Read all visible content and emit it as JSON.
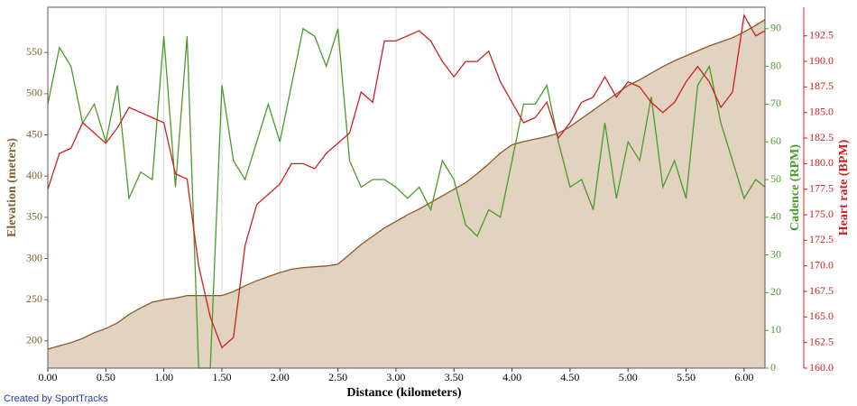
{
  "chart_data": {
    "type": "line",
    "x_label": "Distance (kilometers)",
    "y_label": "Elevation (meters)",
    "y2_label": "Cadence (RPM)",
    "y3_label": "Heart rate (BPM)",
    "credit": "Created by SportTracks",
    "grid": true,
    "xlim": [
      0,
      6.18
    ],
    "xticks": [
      {
        "value": 0,
        "label": "0.00"
      },
      {
        "value": 0.5,
        "label": "0.50"
      },
      {
        "value": 1,
        "label": "1.00"
      },
      {
        "value": 1.5,
        "label": "1.50"
      },
      {
        "value": 2,
        "label": "2.00"
      },
      {
        "value": 2.5,
        "label": "2.50"
      },
      {
        "value": 3,
        "label": "3.00"
      },
      {
        "value": 3.5,
        "label": "3.50"
      },
      {
        "value": 4,
        "label": "4.00"
      },
      {
        "value": 4.5,
        "label": "4.50"
      },
      {
        "value": 5,
        "label": "5.00"
      },
      {
        "value": 5.5,
        "label": "5.50"
      },
      {
        "value": 6,
        "label": "6.00"
      }
    ],
    "ylim": [
      167,
      605
    ],
    "yticks": [
      200,
      250,
      300,
      350,
      400,
      450,
      500,
      550
    ],
    "y2lim": [
      0,
      95.7
    ],
    "y2ticks": [
      0,
      10,
      20,
      30,
      40,
      50,
      60,
      70,
      80,
      90
    ],
    "y3lim": [
      160,
      195.3
    ],
    "y3ticks": [
      {
        "value": 160,
        "label": "160.0"
      },
      {
        "value": 162.5,
        "label": "162.5"
      },
      {
        "value": 165,
        "label": "165.0"
      },
      {
        "value": 167.5,
        "label": "167.5"
      },
      {
        "value": 170,
        "label": "170.0"
      },
      {
        "value": 172.5,
        "label": "172.5"
      },
      {
        "value": 175,
        "label": "175.0"
      },
      {
        "value": 177.5,
        "label": "177.5"
      },
      {
        "value": 180,
        "label": "180.0"
      },
      {
        "value": 182.5,
        "label": "182.5"
      },
      {
        "value": 185,
        "label": "185.0"
      },
      {
        "value": 187.5,
        "label": "187.5"
      },
      {
        "value": 190,
        "label": "190.0"
      },
      {
        "value": 192.5,
        "label": "192.5"
      }
    ],
    "x": [
      0,
      0.1,
      0.2,
      0.3,
      0.4,
      0.5,
      0.6,
      0.7,
      0.8,
      0.9,
      1,
      1.1,
      1.2,
      1.3,
      1.4,
      1.5,
      1.6,
      1.7,
      1.8,
      1.9,
      2,
      2.1,
      2.2,
      2.3,
      2.4,
      2.5,
      2.6,
      2.7,
      2.8,
      2.9,
      3,
      3.1,
      3.2,
      3.3,
      3.4,
      3.5,
      3.6,
      3.7,
      3.8,
      3.9,
      4,
      4.1,
      4.2,
      4.3,
      4.4,
      4.5,
      4.6,
      4.7,
      4.8,
      4.9,
      5,
      5.1,
      5.2,
      5.3,
      5.4,
      5.5,
      5.6,
      5.7,
      5.8,
      5.9,
      6,
      6.1,
      6.18
    ],
    "series": [
      {
        "axis": "y",
        "area": true,
        "color": "#8b5a2b",
        "fill_color": "#e2d3c0",
        "values": [
          190,
          194,
          198,
          203,
          210,
          215,
          222,
          232,
          240,
          247,
          250,
          252,
          255,
          255,
          255,
          255,
          260,
          267,
          273,
          278,
          283,
          287,
          289,
          290,
          291,
          293,
          305,
          317,
          327,
          337,
          345,
          353,
          360,
          368,
          376,
          384,
          392,
          403,
          415,
          428,
          438,
          442,
          445,
          448,
          452,
          460,
          470,
          480,
          490,
          500,
          510,
          517,
          525,
          533,
          540,
          546,
          552,
          558,
          563,
          568,
          575,
          583,
          590
        ]
      },
      {
        "axis": "y2",
        "color": "#4a9a2a",
        "values": [
          70,
          85,
          80,
          65,
          70,
          60,
          75,
          45,
          52,
          50,
          88,
          48,
          88,
          0,
          0,
          75,
          55,
          50,
          60,
          70,
          60,
          75,
          90,
          88,
          80,
          90,
          55,
          48,
          50,
          50,
          48,
          45,
          48,
          42,
          55,
          50,
          38,
          35,
          42,
          40,
          55,
          70,
          70,
          75,
          60,
          48,
          50,
          42,
          65,
          45,
          60,
          55,
          72,
          48,
          55,
          45,
          75,
          80,
          65,
          55,
          45,
          50,
          48
        ]
      },
      {
        "axis": "y3",
        "color": "#cc2020",
        "values": [
          177.5,
          181,
          181.5,
          184,
          183,
          182,
          183.5,
          185.5,
          185,
          184.5,
          184,
          179,
          178.5,
          170,
          165,
          162,
          163,
          172,
          176,
          177,
          178,
          180,
          180,
          179.5,
          181,
          182,
          183,
          187,
          186,
          192,
          192,
          192.5,
          193,
          192,
          190,
          188.5,
          190,
          190,
          191,
          188,
          186,
          184,
          184.5,
          186,
          182.5,
          184,
          186,
          186.5,
          188.5,
          186.5,
          188,
          187.5,
          186,
          185,
          186,
          188,
          189.5,
          188,
          185.5,
          187,
          194.5,
          192.5,
          193
        ]
      }
    ]
  }
}
